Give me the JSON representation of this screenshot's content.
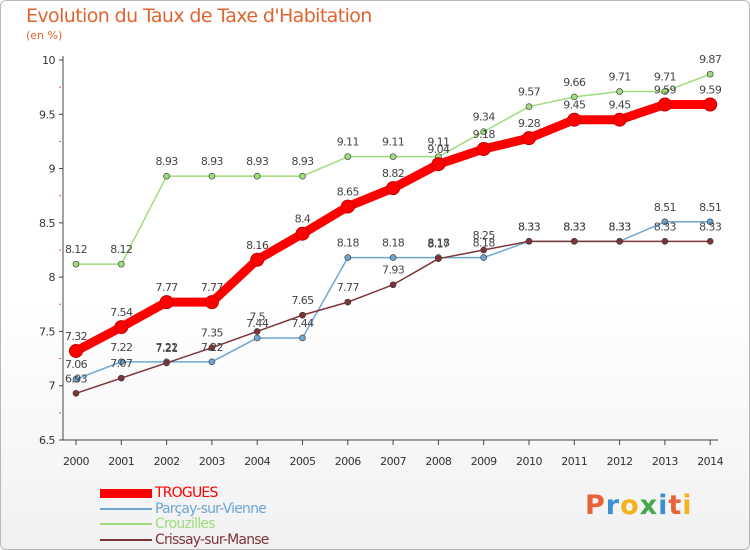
{
  "title": "Evolution du Taux de Taxe d'Habitation",
  "unit_label": "(en %)",
  "logo_text": "Proxiti",
  "logo_colors": [
    "#e8623a",
    "#3d8fd1",
    "#f3b21b",
    "#45a84a",
    "#3d8fd1",
    "#e8623a",
    "#f3b21b"
  ],
  "chart_data": {
    "type": "line",
    "title": "Evolution du Taux de Taxe d'Habitation",
    "ylabel": "(en %)",
    "xlabel": "",
    "x": [
      "2000",
      "2001",
      "2002",
      "2003",
      "2004",
      "2005",
      "2006",
      "2007",
      "2008",
      "2009",
      "2010",
      "2011",
      "2012",
      "2013",
      "2014"
    ],
    "ylim": [
      6.5,
      10
    ],
    "yticks": [
      "6.5",
      "7",
      "7.5",
      "8",
      "8.5",
      "9",
      "9.5",
      "10"
    ],
    "grid": false,
    "legend_position": "bottom-left",
    "series": [
      {
        "name": "TROGUES",
        "color": "#ff0000",
        "values": [
          7.32,
          7.54,
          7.77,
          7.77,
          8.16,
          8.4,
          8.65,
          8.82,
          9.04,
          9.18,
          9.28,
          9.45,
          9.45,
          9.59,
          9.59
        ],
        "labels": [
          "7.32",
          "7.54",
          "7.77",
          "7.77",
          "8.16",
          "8.4",
          "8.65",
          "8.82",
          "9.04",
          "9.18",
          "9.28",
          "9.45",
          "9.45",
          "9.59",
          "9.59"
        ]
      },
      {
        "name": "Parçay-sur-Vienne",
        "color": "#6ea6d3",
        "values": [
          7.06,
          7.22,
          7.22,
          7.22,
          7.44,
          7.44,
          8.18,
          8.18,
          8.18,
          8.18,
          8.33,
          8.33,
          8.33,
          8.51,
          8.51
        ],
        "labels": [
          "7.06",
          "7.22",
          "7.22",
          "7.22",
          "7.44",
          "7.44",
          "8.18",
          "8.18",
          "8.18",
          "8.18",
          "8.33",
          "8.33",
          "8.33",
          "8.51",
          "8.51"
        ]
      },
      {
        "name": "Crouzilles",
        "color": "#9fdc7c",
        "values": [
          8.12,
          8.12,
          8.93,
          8.93,
          8.93,
          8.93,
          9.11,
          9.11,
          9.11,
          9.34,
          9.57,
          9.66,
          9.71,
          9.71,
          9.87
        ],
        "labels": [
          "8.12",
          "8.12",
          "8.93",
          "8.93",
          "8.93",
          "8.93",
          "9.11",
          "9.11",
          "9.11",
          "9.34",
          "9.57",
          "9.66",
          "9.71",
          "9.71",
          "9.87"
        ]
      },
      {
        "name": "Crissay-sur-Manse",
        "color": "#7d3538",
        "values": [
          6.93,
          7.07,
          7.21,
          7.35,
          7.5,
          7.65,
          7.77,
          7.93,
          8.17,
          8.25,
          8.33,
          8.33,
          8.33,
          8.33,
          8.33
        ],
        "labels": [
          "6.93",
          "7.07",
          "7.21",
          "7.35",
          "7.5",
          "7.65",
          "7.77",
          "7.93",
          "8.17",
          "8.25",
          "8.33",
          "8.33",
          "8.33",
          "8.33",
          "8.33"
        ]
      }
    ]
  }
}
